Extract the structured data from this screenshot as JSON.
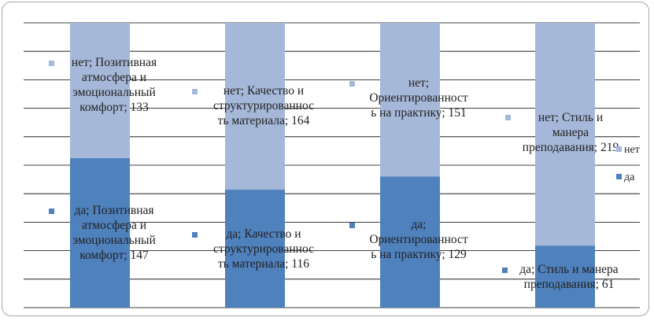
{
  "chart_data": {
    "type": "bar",
    "stacked": true,
    "categories": [
      "Позитивная атмосфера и эмоциональный комфорт",
      "Качество и структурированность материала",
      "Ориентированность на практику",
      "Стиль и манера преподавания"
    ],
    "series": [
      {
        "name": "да",
        "values": [
          147,
          116,
          129,
          61
        ]
      },
      {
        "name": "нет",
        "values": [
          133,
          164,
          151,
          219
        ]
      }
    ],
    "data_labels": [
      [
        "да; Позитивная",
        "атмосфера и",
        "эмоциональный",
        "комфорт; 147"
      ],
      [
        "да; Качество и",
        "структурированнос",
        "ть материала; 116"
      ],
      [
        "да;",
        "Ориентированност",
        "ь на практику; 129"
      ],
      [
        "да; Стиль и манера",
        "преподавания; 61"
      ],
      [
        "нет; Позитивная",
        "атмосфера и",
        "эмоциональный",
        "комфорт; 133"
      ],
      [
        "нет; Качество и",
        "структурированнос",
        "ть материала; 164"
      ],
      [
        "нет;",
        "Ориентированност",
        "ь на практику; 151"
      ],
      [
        "нет; Стиль и",
        "манера",
        "преподавания; 219"
      ]
    ],
    "ylim": [
      0,
      280
    ],
    "grid": true,
    "legend": {
      "position": "right",
      "items": [
        "нет",
        "да"
      ]
    },
    "colors": {
      "да": "#4f81bd",
      "нет": "#a6b8d9",
      "grid": "#000000",
      "border": "#a6a6a6"
    }
  }
}
